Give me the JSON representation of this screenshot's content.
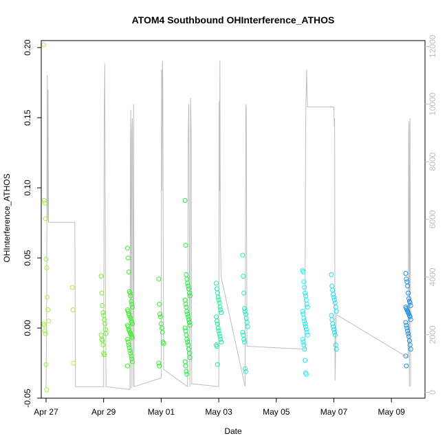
{
  "chart_data": {
    "type": "scatter",
    "title": "ATOM4 Southbound OHInterference_ATHOS",
    "xlabel": "Date",
    "ylabel": "OHInterference_ATHOS",
    "xlim": [
      "2018-04-26 20:00",
      "2018-05-10 04:00"
    ],
    "ylim": [
      -0.05,
      0.205
    ],
    "y2lim": [
      -200,
      12200
    ],
    "x_ticks": [
      {
        "date": "2018-04-27",
        "label": "Apr 27"
      },
      {
        "date": "2018-04-29",
        "label": "Apr 29"
      },
      {
        "date": "2018-05-01",
        "label": "May 01"
      },
      {
        "date": "2018-05-03",
        "label": "May 03"
      },
      {
        "date": "2018-05-05",
        "label": "May 05"
      },
      {
        "date": "2018-05-07",
        "label": "May 07"
      },
      {
        "date": "2018-05-09",
        "label": "May 09"
      }
    ],
    "y_ticks": [
      "-0.05",
      "0.00",
      "0.05",
      "0.10",
      "0.15",
      "0.20"
    ],
    "y2_ticks": [
      "0",
      "2000",
      "4000",
      "6000",
      "8000",
      "10000",
      "12000"
    ],
    "grid": false,
    "legend": "none",
    "colors": {
      "altitude_line": "#bebebe",
      "axes": "#000000"
    },
    "flights": [
      {
        "date": "2018-04-27",
        "color": "#a0f040",
        "y": [
          0.202,
          0.091,
          0.089,
          0.078,
          0.049,
          0.043,
          0.022,
          0.013,
          0.005,
          0.003,
          0.002,
          -0.002,
          -0.004,
          -0.026,
          -0.044
        ]
      },
      {
        "date": "2018-04-28",
        "color": "#a0f040",
        "y": [
          0.029,
          0.013,
          -0.025
        ]
      },
      {
        "date": "2018-04-29",
        "color": "#70f030",
        "y": [
          0.037,
          0.025,
          0.016,
          0.011,
          0.009,
          0.006,
          0.003,
          -0.001,
          -0.004,
          -0.005,
          -0.008,
          -0.009,
          -0.012,
          -0.018,
          -0.019
        ]
      },
      {
        "date": "2018-04-29 22:00",
        "color": "#40ee30",
        "y": [
          0.057,
          0.05,
          0.04,
          0.026,
          0.025,
          0.023,
          0.019,
          0.017,
          0.015,
          0.013,
          0.012,
          0.01,
          0.009,
          0.008,
          0.007,
          0.005,
          0.004,
          0.003,
          0.002,
          0.001,
          -0.001,
          -0.002,
          -0.003,
          -0.004,
          -0.005,
          -0.006,
          -0.007,
          -0.008,
          -0.01,
          -0.012,
          -0.014,
          -0.016,
          -0.018,
          -0.02,
          -0.022,
          -0.024,
          -0.027
        ]
      },
      {
        "date": "2018-05-01",
        "color": "#30ee30",
        "y": [
          0.035,
          0.017,
          0.01,
          0.008,
          0.003,
          0.0,
          -0.003,
          -0.01,
          -0.011,
          -0.025,
          -0.027
        ]
      },
      {
        "date": "2018-05-01 22:00",
        "color": "#22ee40",
        "y": [
          0.091,
          0.059,
          0.038,
          0.035,
          0.032,
          0.03,
          0.028,
          0.025,
          0.023,
          0.02,
          0.017,
          0.015,
          0.012,
          0.01,
          0.008,
          0.006,
          0.004,
          0.002,
          0.0,
          -0.002,
          -0.005,
          -0.008,
          -0.01,
          -0.012,
          -0.015,
          -0.018,
          -0.021,
          -0.024,
          -0.027,
          -0.031,
          -0.033
        ]
      },
      {
        "date": "2018-05-03",
        "color": "#20eea0",
        "y": [
          0.032,
          0.028,
          0.025,
          0.022,
          0.02,
          0.018,
          0.015,
          0.013,
          0.011,
          0.008,
          0.005,
          0.003,
          0.0,
          -0.002,
          -0.004,
          -0.006,
          -0.008,
          -0.01,
          -0.012,
          -0.013,
          -0.026
        ]
      },
      {
        "date": "2018-05-03 22:00",
        "color": "#20eec0",
        "y": [
          0.052,
          0.037,
          0.025,
          0.014,
          0.012,
          0.01,
          0.007,
          0.004,
          0.001,
          -0.003,
          -0.005,
          -0.008,
          -0.01,
          -0.029,
          -0.031
        ]
      },
      {
        "date": "2018-05-06",
        "color": "#20eeee",
        "y": [
          0.041,
          0.04,
          0.033,
          0.029,
          0.025,
          0.023,
          0.02,
          0.017,
          0.015,
          0.012,
          0.01,
          0.007,
          0.005,
          0.003,
          0.001,
          -0.001,
          -0.003,
          -0.005,
          -0.008,
          -0.01,
          -0.012,
          -0.015,
          -0.023,
          -0.032,
          -0.033
        ]
      },
      {
        "date": "2018-05-07",
        "color": "#20dde8",
        "y": [
          0.038,
          0.03,
          0.027,
          0.024,
          0.022,
          0.02,
          0.018,
          0.015,
          0.012,
          0.009,
          0.006,
          0.003,
          0.001,
          -0.001,
          -0.003,
          -0.005,
          -0.012,
          -0.015
        ]
      },
      {
        "date": "2018-05-09 14:00",
        "color": "#2090e0",
        "y": [
          0.039,
          0.035,
          0.033,
          0.03,
          0.025,
          0.021,
          0.019,
          0.018,
          0.016,
          0.015,
          0.014,
          0.013,
          0.012,
          0.011,
          0.01,
          0.009,
          0.008,
          0.006,
          0.004,
          0.002,
          0.0,
          -0.002,
          -0.004,
          -0.006,
          -0.009,
          -0.012,
          -0.015,
          -0.02,
          -0.027
        ]
      }
    ],
    "altitude_profile": [
      [
        "2018-04-27 00:00",
        150
      ],
      [
        "2018-04-27 00:30",
        2500
      ],
      [
        "2018-04-27 01:00",
        11000
      ],
      [
        "2018-04-27 01:20",
        6000
      ],
      [
        "2018-04-27 01:40",
        10500
      ],
      [
        "2018-04-27 02:00",
        5900
      ],
      [
        "2018-04-28 00:00",
        5900
      ],
      [
        "2018-04-28 00:30",
        200
      ],
      [
        "2018-04-29 00:00",
        200
      ],
      [
        "2018-04-29 00:30",
        9500
      ],
      [
        "2018-04-29 01:00",
        11400
      ],
      [
        "2018-04-29 01:30",
        4000
      ],
      [
        "2018-04-29 02:00",
        200
      ],
      [
        "2018-04-29 22:00",
        100
      ],
      [
        "2018-04-29 22:20",
        8500
      ],
      [
        "2018-04-29 22:40",
        9800
      ],
      [
        "2018-04-29 23:00",
        150
      ],
      [
        "2018-04-29 23:30",
        9000
      ],
      [
        "2018-04-30 00:00",
        9500
      ],
      [
        "2018-04-30 00:30",
        200
      ],
      [
        "2018-04-30 01:00",
        10000
      ],
      [
        "2018-04-30 01:30",
        200
      ],
      [
        "2018-05-01 00:00",
        500
      ],
      [
        "2018-05-01 00:20",
        11200
      ],
      [
        "2018-05-01 00:40",
        7000
      ],
      [
        "2018-05-01 01:00",
        11500
      ],
      [
        "2018-05-01 01:20",
        11000
      ],
      [
        "2018-05-01 02:00",
        800
      ],
      [
        "2018-05-01 22:00",
        200
      ],
      [
        "2018-05-01 22:30",
        8800
      ],
      [
        "2018-05-01 23:00",
        10000
      ],
      [
        "2018-05-02 00:00",
        200
      ],
      [
        "2018-05-02 00:30",
        10200
      ],
      [
        "2018-05-02 01:00",
        9000
      ],
      [
        "2018-05-02 01:30",
        300
      ],
      [
        "2018-05-03 00:00",
        200
      ],
      [
        "2018-05-03 00:20",
        10100
      ],
      [
        "2018-05-03 00:40",
        7000
      ],
      [
        "2018-05-03 01:00",
        11500
      ],
      [
        "2018-05-03 01:20",
        5400
      ],
      [
        "2018-05-03 02:00",
        4000
      ],
      [
        "2018-05-03 22:00",
        200
      ],
      [
        "2018-05-03 22:20",
        5500
      ],
      [
        "2018-05-03 22:40",
        10000
      ],
      [
        "2018-05-03 23:00",
        9800
      ],
      [
        "2018-05-03 23:30",
        1600
      ],
      [
        "2018-05-06 00:00",
        1500
      ],
      [
        "2018-05-06 00:20",
        8200
      ],
      [
        "2018-05-06 00:40",
        10000
      ],
      [
        "2018-05-06 01:00",
        10500
      ],
      [
        "2018-05-06 01:20",
        11200
      ],
      [
        "2018-05-06 02:00",
        9900
      ],
      [
        "2018-05-07 00:00",
        9900
      ],
      [
        "2018-05-07 00:20",
        9200
      ],
      [
        "2018-05-07 00:40",
        9500
      ],
      [
        "2018-05-07 01:00",
        400
      ],
      [
        "2018-05-07 02:00",
        2700
      ],
      [
        "2018-05-09 14:00",
        1200
      ],
      [
        "2018-05-09 14:20",
        9000
      ],
      [
        "2018-05-09 14:40",
        9400
      ],
      [
        "2018-05-09 15:00",
        200
      ],
      [
        "2018-05-09 15:30",
        9500
      ],
      [
        "2018-05-09 16:00",
        200
      ]
    ]
  }
}
